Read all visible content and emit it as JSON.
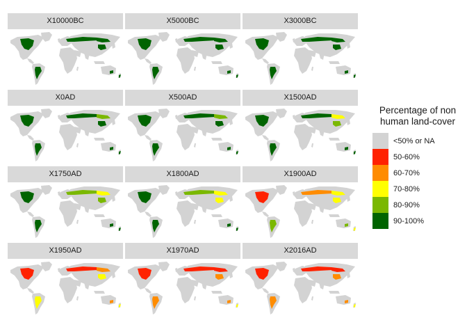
{
  "colors": {
    "background": "#ffffff",
    "strip": "#d9d9d9",
    "na": "#d3d3d3",
    "c50_60": "#ff2200",
    "c60_70": "#ff8c00",
    "c70_80": "#ffff00",
    "c80_90": "#7ab800",
    "c90_100": "#006400"
  },
  "chart_data": {
    "type": "heatmap",
    "subtype": "faceted choropleth world maps",
    "layout": {
      "columns": 3,
      "rows": 4
    },
    "legend": {
      "title_lines": [
        "Percentage of non",
        "human land-cover"
      ],
      "position": "right",
      "items": [
        {
          "label": "<50% or NA",
          "color": "#d3d3d3"
        },
        {
          "label": "50-60%",
          "color": "#ff2200"
        },
        {
          "label": "60-70%",
          "color": "#ff8c00"
        },
        {
          "label": "70-80%",
          "color": "#ffff00"
        },
        {
          "label": "80-90%",
          "color": "#7ab800"
        },
        {
          "label": "90-100%",
          "color": "#006400"
        }
      ]
    },
    "facets": [
      {
        "label": "X10000BC",
        "regions": {
          "north_america": "90-100%",
          "south_america": "90-100%",
          "boreal_eurasia": "90-100%",
          "siberia_east": "90-100%",
          "east_asia": "90-100%",
          "australia_se": "90-100%",
          "new_zealand": "90-100%"
        }
      },
      {
        "label": "X5000BC",
        "regions": {
          "north_america": "90-100%",
          "south_america": "90-100%",
          "boreal_eurasia": "90-100%",
          "siberia_east": "90-100%",
          "east_asia": "90-100%",
          "australia_se": "90-100%",
          "new_zealand": "90-100%"
        }
      },
      {
        "label": "X3000BC",
        "regions": {
          "north_america": "90-100%",
          "south_america": "90-100%",
          "boreal_eurasia": "90-100%",
          "siberia_east": "90-100%",
          "east_asia": "90-100%",
          "australia_se": "90-100%",
          "new_zealand": "90-100%"
        }
      },
      {
        "label": "X0AD",
        "regions": {
          "north_america": "90-100%",
          "south_america": "90-100%",
          "boreal_eurasia": "90-100%",
          "siberia_east": "80-90%",
          "east_asia": "90-100%",
          "australia_se": "90-100%",
          "new_zealand": "90-100%"
        }
      },
      {
        "label": "X500AD",
        "regions": {
          "north_america": "90-100%",
          "south_america": "90-100%",
          "boreal_eurasia": "90-100%",
          "siberia_east": "80-90%",
          "east_asia": "90-100%",
          "australia_se": "90-100%",
          "new_zealand": "90-100%"
        }
      },
      {
        "label": "X1500AD",
        "regions": {
          "north_america": "90-100%",
          "south_america": "90-100%",
          "boreal_eurasia": "90-100%",
          "siberia_east": "70-80%",
          "east_asia": "80-90%",
          "australia_se": "90-100%",
          "new_zealand": "90-100%"
        }
      },
      {
        "label": "X1750AD",
        "regions": {
          "north_america": "90-100%",
          "south_america": "90-100%",
          "boreal_eurasia": "80-90%",
          "siberia_east": "70-80%",
          "east_asia": "80-90%",
          "australia_se": "90-100%",
          "new_zealand": "90-100%"
        }
      },
      {
        "label": "X1800AD",
        "regions": {
          "north_america": "90-100%",
          "south_america": "90-100%",
          "boreal_eurasia": "80-90%",
          "siberia_east": "70-80%",
          "east_asia": "70-80%",
          "australia_se": "90-100%",
          "new_zealand": "90-100%"
        }
      },
      {
        "label": "X1900AD",
        "regions": {
          "north_america": "50-60%",
          "south_america": "80-90%",
          "boreal_eurasia": "60-70%",
          "siberia_east": "70-80%",
          "east_asia": "70-80%",
          "australia_se": "80-90%",
          "new_zealand": "70-80%"
        }
      },
      {
        "label": "X1950AD",
        "regions": {
          "north_america": "50-60%",
          "south_america": "70-80%",
          "boreal_eurasia": "50-60%",
          "siberia_east": "60-70%",
          "east_asia": "70-80%",
          "australia_se": "60-70%",
          "new_zealand": "70-80%"
        }
      },
      {
        "label": "X1970AD",
        "regions": {
          "north_america": "50-60%",
          "south_america": "60-70%",
          "boreal_eurasia": "50-60%",
          "siberia_east": "50-60%",
          "east_asia": "60-70%",
          "australia_se": "60-70%",
          "new_zealand": "70-80%"
        }
      },
      {
        "label": "X2016AD",
        "regions": {
          "north_america": "50-60%",
          "south_america": "60-70%",
          "boreal_eurasia": "50-60%",
          "siberia_east": "50-60%",
          "east_asia": "60-70%",
          "australia_se": "60-70%",
          "new_zealand": "70-80%"
        }
      }
    ]
  }
}
